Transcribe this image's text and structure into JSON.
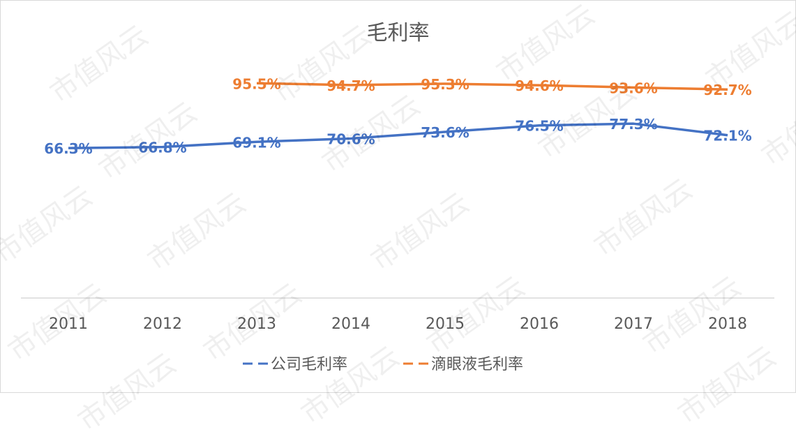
{
  "chart_data": {
    "type": "line",
    "title": "毛利率",
    "xlabel": "",
    "ylabel": "",
    "categories": [
      "2011",
      "2012",
      "2013",
      "2014",
      "2015",
      "2016",
      "2017",
      "2018"
    ],
    "series": [
      {
        "name": "公司毛利率",
        "color": "#4472c4",
        "values": [
          66.3,
          66.8,
          69.1,
          70.6,
          73.6,
          76.5,
          77.3,
          72.1
        ],
        "labels": [
          "66.3%",
          "66.8%",
          "69.1%",
          "70.6%",
          "73.6%",
          "76.5%",
          "77.3%",
          "72.1%"
        ]
      },
      {
        "name": "滴眼液毛利率",
        "color": "#ed7d31",
        "values": [
          null,
          null,
          95.5,
          94.7,
          95.3,
          94.6,
          93.6,
          92.7
        ],
        "labels": [
          "",
          "",
          "95.5%",
          "94.7%",
          "95.3%",
          "94.6%",
          "93.6%",
          "92.7%"
        ]
      }
    ],
    "grid": false,
    "legend_position": "bottom",
    "ylim": [
      0,
      130
    ]
  },
  "watermark": "市值风云"
}
